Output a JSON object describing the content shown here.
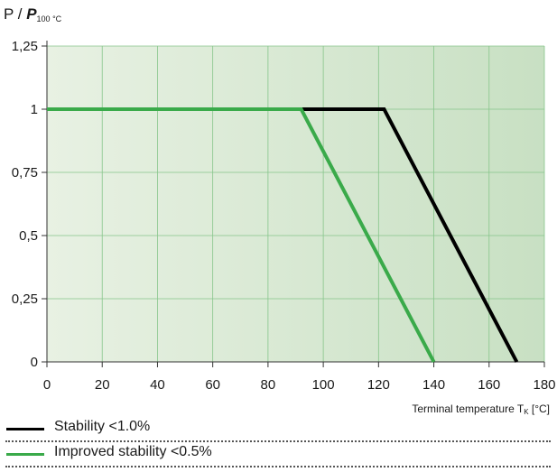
{
  "chart_data": {
    "type": "line",
    "title": "",
    "ylabel": {
      "prefix": "P / ",
      "var": "P",
      "sub": "100 °C"
    },
    "xlabel": {
      "text": "Terminal temperature T",
      "sub": "K",
      "unit": " [°C]"
    },
    "xlim": [
      0,
      180
    ],
    "ylim": [
      0,
      1.25
    ],
    "x_ticks": [
      0,
      20,
      40,
      60,
      80,
      100,
      120,
      140,
      160,
      180
    ],
    "y_ticks": [
      0,
      0.25,
      0.5,
      0.75,
      1,
      1.25
    ],
    "y_tick_labels": [
      "0",
      "0,25",
      "0,5",
      "0,75",
      "1",
      "1,25"
    ],
    "grid": true,
    "legend_position": "bottom",
    "series": [
      {
        "name": "Stability <1.0%",
        "color": "#000000",
        "x": [
          0,
          122,
          170
        ],
        "y": [
          1,
          1,
          0
        ]
      },
      {
        "name": "Improved stability <0.5%",
        "color": "#3aaa4a",
        "x": [
          0,
          92,
          140
        ],
        "y": [
          1,
          1,
          0
        ]
      }
    ],
    "colors": {
      "plot_bg_left": "#e8f1e3",
      "plot_bg_right": "#c8e0c3",
      "grid": "#86c58a",
      "axis": "#333333"
    }
  }
}
